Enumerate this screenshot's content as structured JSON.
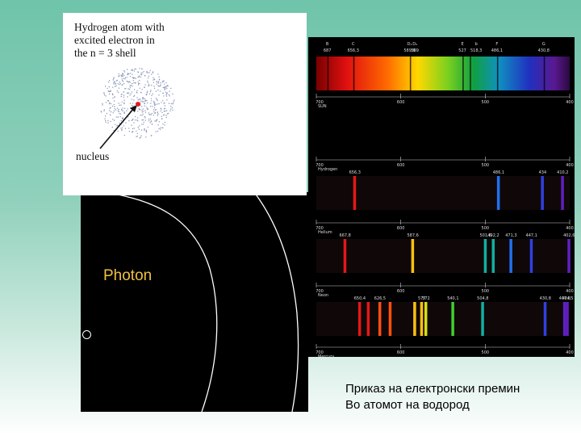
{
  "atom_card": {
    "title_lines": [
      "Hydrogen atom with",
      "excited electron in",
      "the n = 3 shell"
    ],
    "nucleus_label": "nucleus"
  },
  "photon_panel": {
    "label": "Photon",
    "label_color": "#f0c040"
  },
  "caption": {
    "line1": "Приказ на електронски премин",
    "line2": "Во атомот на водород"
  },
  "spectra": {
    "top_labels": [
      "B",
      "C",
      "D₁",
      "D₂",
      "E",
      "b",
      "F",
      "G"
    ],
    "top_values": [
      "687",
      "656,3",
      "589,6",
      "589",
      "527",
      "518,3",
      "486,1",
      "430,8"
    ],
    "rows": [
      {
        "name": "SUN",
        "scale": [
          "700",
          "600",
          "500",
          "400"
        ]
      },
      {
        "name": "Hydrogen",
        "scale": [
          "700",
          "600",
          "500",
          "400"
        ],
        "line_values": [
          "656,3",
          "486,1",
          "434",
          "410,2"
        ]
      },
      {
        "name": "Helium",
        "scale": [
          "700",
          "600",
          "500",
          "400"
        ],
        "line_values": [
          "667,8",
          "587,6",
          "501,6",
          "492,2",
          "471,3",
          "447,1",
          "402,6"
        ]
      },
      {
        "name": "Neon",
        "scale": [
          "700",
          "600",
          "500",
          "400"
        ],
        "line_values": [
          "650,4",
          "626,5",
          "577",
          "572",
          "540,1",
          "504,8",
          "430,8",
          "407,8",
          "404,5"
        ]
      },
      {
        "name": "Mercury",
        "scale": [
          "700",
          "600",
          "500",
          "400"
        ]
      }
    ]
  }
}
